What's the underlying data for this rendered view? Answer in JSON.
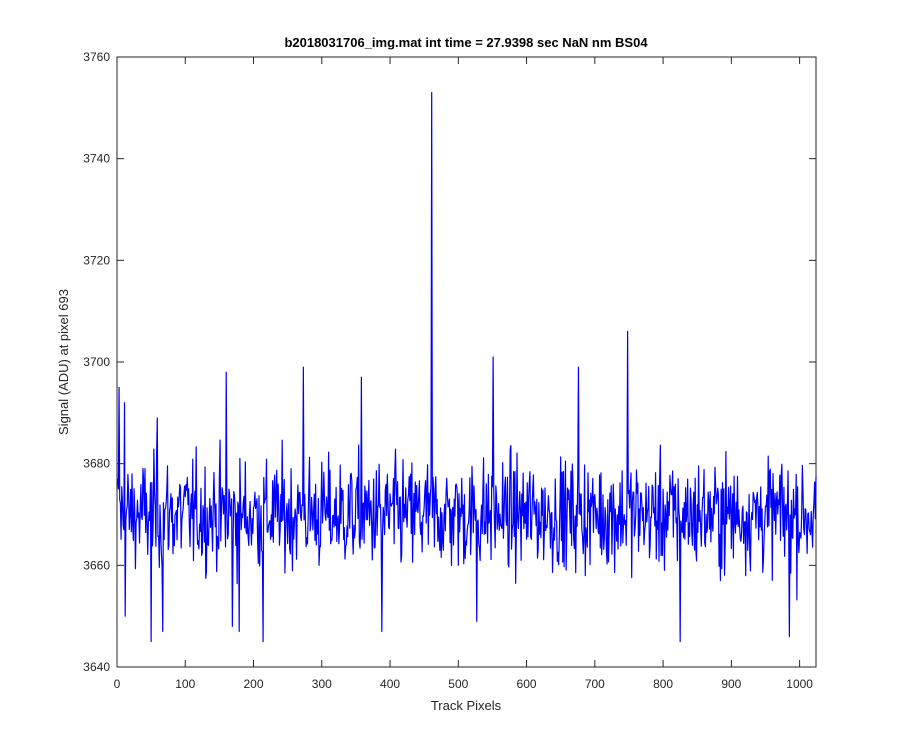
{
  "chart_data": {
    "type": "line",
    "title": "b2018031706_img.mat int time = 27.9398 sec  NaN nm BS04",
    "xlabel": "Track Pixels",
    "ylabel": "Signal (ADU) at pixel 693",
    "xlim": [
      0,
      1024
    ],
    "ylim": [
      3640,
      3760
    ],
    "xticks": [
      0,
      100,
      200,
      300,
      400,
      500,
      600,
      700,
      800,
      900,
      1000
    ],
    "yticks": [
      3640,
      3660,
      3680,
      3700,
      3720,
      3740,
      3760
    ],
    "grid": false,
    "line_color": "#0000ff",
    "series": [
      {
        "n_points": 1024,
        "baseline": 3670,
        "noise_amplitude": 10,
        "min": 3645,
        "max": 3753,
        "peaks": [
          {
            "x": 2,
            "y": 3695
          },
          {
            "x": 10,
            "y": 3692
          },
          {
            "x": 11,
            "y": 3650
          },
          {
            "x": 49,
            "y": 3645
          },
          {
            "x": 58,
            "y": 3689
          },
          {
            "x": 66,
            "y": 3647
          },
          {
            "x": 159,
            "y": 3698
          },
          {
            "x": 168,
            "y": 3648
          },
          {
            "x": 178,
            "y": 3647
          },
          {
            "x": 213,
            "y": 3645
          },
          {
            "x": 272,
            "y": 3699
          },
          {
            "x": 357,
            "y": 3697
          },
          {
            "x": 387,
            "y": 3647
          },
          {
            "x": 460,
            "y": 3753
          },
          {
            "x": 526,
            "y": 3649
          },
          {
            "x": 550,
            "y": 3701
          },
          {
            "x": 675,
            "y": 3699
          },
          {
            "x": 747,
            "y": 3706
          },
          {
            "x": 824,
            "y": 3645
          },
          {
            "x": 984,
            "y": 3646
          }
        ]
      }
    ]
  }
}
